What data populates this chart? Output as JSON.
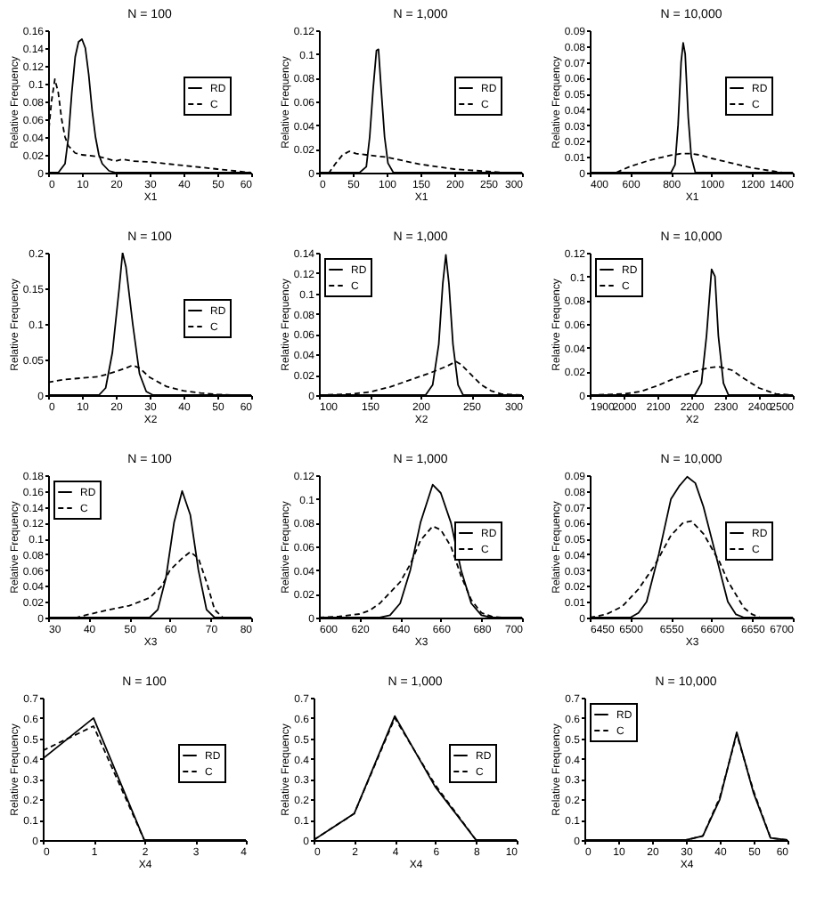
{
  "chart_data": [
    {
      "type": "line",
      "title": "N = 100",
      "xlabel": "X1",
      "ylabel": "Relative Frequency",
      "xlim": [
        0,
        60
      ],
      "xticks": [
        0,
        10,
        20,
        30,
        40,
        50,
        60
      ],
      "ylim": [
        0,
        0.16
      ],
      "yticks": [
        0,
        0.02,
        0.04,
        0.06,
        0.08,
        0.1,
        0.12,
        0.14,
        0.16
      ],
      "legend": "right",
      "series": [
        {
          "name": "RD",
          "color": "#000000",
          "line_style": "solid",
          "x": [
            0,
            3,
            5,
            6,
            7,
            8,
            9,
            10,
            11,
            12,
            13,
            14,
            15,
            16,
            18,
            20,
            60
          ],
          "values": [
            0,
            0,
            0.01,
            0.04,
            0.09,
            0.13,
            0.147,
            0.15,
            0.14,
            0.11,
            0.07,
            0.04,
            0.02,
            0.01,
            0.002,
            0,
            0
          ]
        },
        {
          "name": "C",
          "color": "#000000",
          "line_style": "dashed",
          "x": [
            0,
            1,
            2,
            3,
            4,
            5,
            6,
            8,
            10,
            15,
            20,
            22,
            25,
            30,
            35,
            40,
            45,
            50,
            55,
            60
          ],
          "values": [
            0.04,
            0.08,
            0.105,
            0.09,
            0.06,
            0.04,
            0.03,
            0.022,
            0.02,
            0.018,
            0.013,
            0.015,
            0.013,
            0.012,
            0.01,
            0.008,
            0.006,
            0.004,
            0.002,
            0
          ]
        }
      ]
    },
    {
      "type": "line",
      "title": "N = 1,000",
      "xlabel": "X1",
      "ylabel": "Relative Frequency",
      "xlim": [
        0,
        300
      ],
      "xticks": [
        0,
        50,
        100,
        150,
        200,
        250,
        300
      ],
      "ylim": [
        0,
        0.12
      ],
      "yticks": [
        0,
        0.02,
        0.04,
        0.06,
        0.08,
        0.1,
        0.12
      ],
      "legend": "right",
      "series": [
        {
          "name": "RD",
          "color": "#000000",
          "line_style": "solid",
          "x": [
            0,
            60,
            70,
            75,
            80,
            85,
            88,
            92,
            97,
            102,
            110,
            300
          ],
          "values": [
            0,
            0,
            0.005,
            0.03,
            0.07,
            0.103,
            0.104,
            0.07,
            0.03,
            0.008,
            0,
            0
          ]
        },
        {
          "name": "C",
          "color": "#000000",
          "line_style": "dashed",
          "x": [
            0,
            15,
            25,
            35,
            45,
            55,
            70,
            85,
            100,
            125,
            150,
            175,
            200,
            225,
            250,
            275,
            300
          ],
          "values": [
            0,
            0,
            0.008,
            0.015,
            0.018,
            0.016,
            0.015,
            0.014,
            0.013,
            0.01,
            0.007,
            0.005,
            0.003,
            0.002,
            0.001,
            0,
            0
          ]
        }
      ]
    },
    {
      "type": "line",
      "title": "N = 10,000",
      "xlabel": "X1",
      "ylabel": "Relative Frequency",
      "xlim": [
        400,
        1400
      ],
      "xticks": [
        400,
        600,
        800,
        1000,
        1200,
        1400
      ],
      "ylim": [
        0,
        0.09
      ],
      "yticks": [
        0,
        0.01,
        0.02,
        0.03,
        0.04,
        0.05,
        0.06,
        0.07,
        0.08,
        0.09
      ],
      "legend": "right",
      "series": [
        {
          "name": "RD",
          "color": "#000000",
          "line_style": "solid",
          "x": [
            400,
            800,
            820,
            835,
            850,
            860,
            870,
            885,
            900,
            920,
            1400
          ],
          "values": [
            0,
            0,
            0.005,
            0.03,
            0.07,
            0.082,
            0.075,
            0.035,
            0.01,
            0,
            0
          ]
        },
        {
          "name": "C",
          "color": "#000000",
          "line_style": "dashed",
          "x": [
            400,
            530,
            600,
            700,
            800,
            850,
            900,
            950,
            1000,
            1100,
            1200,
            1250,
            1300,
            1350,
            1400
          ],
          "values": [
            0,
            0,
            0.004,
            0.008,
            0.011,
            0.012,
            0.012,
            0.011,
            0.009,
            0.006,
            0.003,
            0.002,
            0.001,
            0,
            0
          ]
        }
      ]
    },
    {
      "type": "line",
      "title": "N = 100",
      "xlabel": "X2",
      "ylabel": "Relative Frequency",
      "xlim": [
        0,
        60
      ],
      "xticks": [
        0,
        10,
        20,
        30,
        40,
        50,
        60
      ],
      "ylim": [
        0,
        0.2
      ],
      "yticks": [
        0,
        0.05,
        0.1,
        0.15,
        0.2
      ],
      "legend": "right",
      "series": [
        {
          "name": "RD",
          "color": "#000000",
          "line_style": "solid",
          "x": [
            0,
            15,
            17,
            19,
            21,
            22,
            23,
            25,
            27,
            29,
            31,
            60
          ],
          "values": [
            0,
            0,
            0.01,
            0.06,
            0.15,
            0.2,
            0.18,
            0.1,
            0.03,
            0.005,
            0,
            0
          ]
        },
        {
          "name": "C",
          "color": "#000000",
          "line_style": "dashed",
          "x": [
            0,
            5,
            10,
            15,
            20,
            23,
            25,
            27,
            30,
            35,
            40,
            45,
            50,
            55,
            60
          ],
          "values": [
            0.018,
            0.022,
            0.024,
            0.026,
            0.033,
            0.038,
            0.042,
            0.038,
            0.025,
            0.012,
            0.006,
            0.003,
            0.001,
            0,
            0
          ]
        }
      ]
    },
    {
      "type": "line",
      "title": "N = 1,000",
      "xlabel": "X2",
      "ylabel": "Relative Frequency",
      "xlim": [
        100,
        300
      ],
      "xticks": [
        100,
        150,
        200,
        250,
        300
      ],
      "ylim": [
        0,
        0.14
      ],
      "yticks": [
        0,
        0.02,
        0.04,
        0.06,
        0.08,
        0.1,
        0.12,
        0.14
      ],
      "legend": "top left",
      "series": [
        {
          "name": "RD",
          "color": "#000000",
          "line_style": "solid",
          "x": [
            100,
            205,
            212,
            218,
            222,
            225,
            228,
            232,
            237,
            242,
            300
          ],
          "values": [
            0,
            0,
            0.01,
            0.05,
            0.11,
            0.138,
            0.11,
            0.05,
            0.01,
            0,
            0
          ]
        },
        {
          "name": "C",
          "color": "#000000",
          "line_style": "dashed",
          "x": [
            100,
            130,
            150,
            170,
            190,
            210,
            225,
            235,
            240,
            250,
            260,
            270,
            280,
            300
          ],
          "values": [
            0,
            0.001,
            0.003,
            0.008,
            0.015,
            0.022,
            0.028,
            0.033,
            0.03,
            0.02,
            0.01,
            0.004,
            0.001,
            0
          ]
        }
      ]
    },
    {
      "type": "line",
      "title": "N = 10,000",
      "xlabel": "X2",
      "ylabel": "Relative Frequency",
      "xlim": [
        1900,
        2500
      ],
      "xticks": [
        1900,
        2000,
        2100,
        2200,
        2300,
        2400,
        2500
      ],
      "ylim": [
        0,
        0.12
      ],
      "yticks": [
        0,
        0.02,
        0.04,
        0.06,
        0.08,
        0.1,
        0.12
      ],
      "legend": "top left",
      "series": [
        {
          "name": "RD",
          "color": "#000000",
          "line_style": "solid",
          "x": [
            1900,
            2210,
            2230,
            2245,
            2260,
            2270,
            2280,
            2295,
            2310,
            2500
          ],
          "values": [
            0,
            0,
            0.01,
            0.05,
            0.106,
            0.1,
            0.05,
            0.01,
            0,
            0
          ]
        },
        {
          "name": "C",
          "color": "#000000",
          "line_style": "dashed",
          "x": [
            1900,
            2000,
            2050,
            2100,
            2150,
            2200,
            2250,
            2280,
            2320,
            2350,
            2400,
            2450,
            2500
          ],
          "values": [
            0,
            0.001,
            0.003,
            0.008,
            0.014,
            0.019,
            0.023,
            0.024,
            0.021,
            0.015,
            0.006,
            0.001,
            0
          ]
        }
      ]
    },
    {
      "type": "line",
      "title": "N = 100",
      "xlabel": "X3",
      "ylabel": "Relative Frequency",
      "xlim": [
        30,
        80
      ],
      "xticks": [
        30,
        40,
        50,
        60,
        70,
        80
      ],
      "ylim": [
        0,
        0.18
      ],
      "yticks": [
        0,
        0.02,
        0.04,
        0.06,
        0.08,
        0.1,
        0.12,
        0.14,
        0.16,
        0.18
      ],
      "legend": "top left",
      "series": [
        {
          "name": "RD",
          "color": "#000000",
          "line_style": "solid",
          "x": [
            30,
            55,
            57,
            59,
            61,
            63,
            65,
            67,
            69,
            71,
            80
          ],
          "values": [
            0,
            0,
            0.01,
            0.05,
            0.12,
            0.16,
            0.13,
            0.06,
            0.01,
            0,
            0
          ]
        },
        {
          "name": "C",
          "color": "#000000",
          "line_style": "dashed",
          "x": [
            30,
            37,
            40,
            45,
            50,
            55,
            58,
            60,
            63,
            65,
            67,
            69,
            71,
            73,
            80
          ],
          "values": [
            0,
            0,
            0.004,
            0.01,
            0.015,
            0.025,
            0.04,
            0.06,
            0.075,
            0.083,
            0.075,
            0.045,
            0.01,
            0,
            0
          ]
        }
      ]
    },
    {
      "type": "line",
      "title": "N = 1,000",
      "xlabel": "X3",
      "ylabel": "Relative Frequency",
      "xlim": [
        600,
        700
      ],
      "xticks": [
        600,
        620,
        640,
        660,
        680,
        700
      ],
      "ylim": [
        0,
        0.12
      ],
      "yticks": [
        0,
        0.02,
        0.04,
        0.06,
        0.08,
        0.1,
        0.12
      ],
      "legend": "right",
      "series": [
        {
          "name": "RD",
          "color": "#000000",
          "line_style": "solid",
          "x": [
            600,
            630,
            635,
            640,
            645,
            650,
            656,
            660,
            665,
            670,
            675,
            680,
            685,
            700
          ],
          "values": [
            0,
            0,
            0.002,
            0.012,
            0.04,
            0.08,
            0.112,
            0.105,
            0.08,
            0.04,
            0.012,
            0.002,
            0,
            0
          ]
        },
        {
          "name": "C",
          "color": "#000000",
          "line_style": "dashed",
          "x": [
            600,
            610,
            620,
            625,
            630,
            640,
            645,
            650,
            656,
            660,
            665,
            670,
            675,
            680,
            685,
            690,
            700
          ],
          "values": [
            0,
            0.001,
            0.003,
            0.006,
            0.012,
            0.03,
            0.045,
            0.065,
            0.077,
            0.074,
            0.06,
            0.035,
            0.015,
            0.004,
            0.001,
            0,
            0
          ]
        }
      ]
    },
    {
      "type": "line",
      "title": "N = 10,000",
      "xlabel": "X3",
      "ylabel": "Relative Frequency",
      "xlim": [
        6450,
        6700
      ],
      "xticks": [
        6450,
        6500,
        6550,
        6600,
        6650,
        6700
      ],
      "ylim": [
        0,
        0.09
      ],
      "yticks": [
        0,
        0.01,
        0.02,
        0.03,
        0.04,
        0.05,
        0.06,
        0.07,
        0.08,
        0.09
      ],
      "legend": "right",
      "series": [
        {
          "name": "RD",
          "color": "#000000",
          "line_style": "solid",
          "x": [
            6450,
            6500,
            6510,
            6520,
            6535,
            6550,
            6560,
            6570,
            6580,
            6590,
            6600,
            6610,
            6620,
            6630,
            6640,
            6700
          ],
          "values": [
            0,
            0,
            0.003,
            0.01,
            0.04,
            0.075,
            0.083,
            0.089,
            0.085,
            0.07,
            0.05,
            0.03,
            0.01,
            0.002,
            0,
            0
          ]
        },
        {
          "name": "C",
          "color": "#000000",
          "line_style": "dashed",
          "x": [
            6450,
            6470,
            6490,
            6510,
            6530,
            6550,
            6565,
            6575,
            6590,
            6610,
            6620,
            6640,
            6650,
            6660,
            6700
          ],
          "values": [
            0,
            0.002,
            0.007,
            0.018,
            0.033,
            0.052,
            0.06,
            0.061,
            0.053,
            0.035,
            0.023,
            0.006,
            0.002,
            0,
            0
          ]
        }
      ]
    },
    {
      "type": "line",
      "title": "N = 100",
      "xlabel": "X4",
      "ylabel": "Relative Frequency",
      "xlim": [
        0,
        4
      ],
      "xticks": [
        0,
        1,
        2,
        3,
        4
      ],
      "ylim": [
        0,
        0.7
      ],
      "yticks": [
        0,
        0.1,
        0.2,
        0.3,
        0.4,
        0.5,
        0.6,
        0.7
      ],
      "legend": "right",
      "series": [
        {
          "name": "RD",
          "color": "#000000",
          "line_style": "solid",
          "x": [
            0,
            1,
            2,
            3,
            4
          ],
          "values": [
            0.4,
            0.6,
            0,
            0,
            0
          ]
        },
        {
          "name": "C",
          "color": "#000000",
          "line_style": "dashed",
          "x": [
            0,
            1,
            2,
            3,
            4
          ],
          "values": [
            0.44,
            0.56,
            0,
            0,
            0
          ]
        }
      ]
    },
    {
      "type": "line",
      "title": "N = 1,000",
      "xlabel": "X4",
      "ylabel": "Relative Frequency",
      "xlim": [
        0,
        10
      ],
      "xticks": [
        0,
        2,
        4,
        6,
        8,
        10
      ],
      "ylim": [
        0,
        0.7
      ],
      "yticks": [
        0,
        0.1,
        0.2,
        0.3,
        0.4,
        0.5,
        0.6,
        0.7
      ],
      "legend": "right",
      "series": [
        {
          "name": "RD",
          "color": "#000000",
          "line_style": "solid",
          "x": [
            0,
            2,
            4,
            6,
            8,
            10
          ],
          "values": [
            0,
            0.13,
            0.61,
            0.26,
            0,
            0
          ]
        },
        {
          "name": "C",
          "color": "#000000",
          "line_style": "dashed",
          "x": [
            0,
            2,
            4,
            6,
            8,
            10
          ],
          "values": [
            0,
            0.13,
            0.6,
            0.27,
            0,
            0
          ]
        }
      ]
    },
    {
      "type": "line",
      "title": "N = 10,000",
      "xlabel": "X4",
      "ylabel": "Relative Frequency",
      "xlim": [
        0,
        60
      ],
      "xticks": [
        0,
        10,
        20,
        30,
        40,
        50,
        60
      ],
      "ylim": [
        0,
        0.7
      ],
      "yticks": [
        0,
        0.1,
        0.2,
        0.3,
        0.4,
        0.5,
        0.6,
        0.7
      ],
      "legend": "top left",
      "series": [
        {
          "name": "RD",
          "color": "#000000",
          "line_style": "solid",
          "x": [
            0,
            5,
            10,
            15,
            20,
            25,
            30,
            35,
            40,
            45,
            50,
            55,
            60
          ],
          "values": [
            0,
            0,
            0,
            0,
            0,
            0,
            0,
            0.02,
            0.2,
            0.53,
            0.23,
            0.01,
            0
          ]
        },
        {
          "name": "C",
          "color": "#000000",
          "line_style": "dashed",
          "x": [
            0,
            5,
            10,
            15,
            20,
            25,
            30,
            35,
            40,
            45,
            50,
            55,
            60
          ],
          "values": [
            0,
            0,
            0,
            0,
            0,
            0,
            0,
            0.02,
            0.21,
            0.52,
            0.24,
            0.01,
            0
          ]
        }
      ]
    }
  ]
}
